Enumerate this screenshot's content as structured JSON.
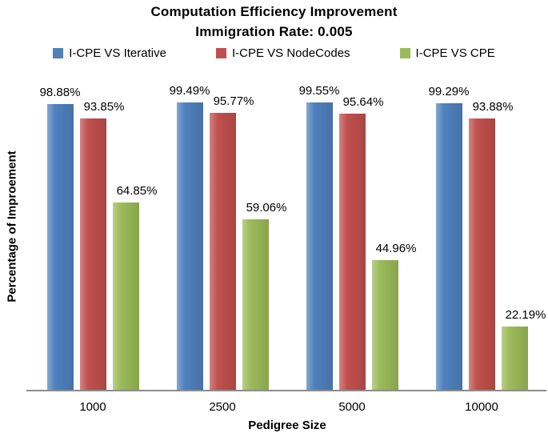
{
  "chart_data": {
    "type": "bar",
    "title": "Computation Efficiency Improvement",
    "subtitle": "Immigration Rate: 0.005",
    "categories": [
      "1000",
      "2500",
      "5000",
      "10000"
    ],
    "series": [
      {
        "name": "I-CPE VS Iterative",
        "color": "#4F81BD",
        "values": [
          98.88,
          99.49,
          99.55,
          99.29
        ],
        "labels": [
          "98.88%",
          "99.49%",
          "99.55%",
          "99.29%"
        ]
      },
      {
        "name": "I-CPE VS NodeCodes",
        "color": "#C0504D",
        "values": [
          93.85,
          95.77,
          95.64,
          93.88
        ],
        "labels": [
          "93.85%",
          "95.77%",
          "95.64%",
          "93.88%"
        ]
      },
      {
        "name": "I-CPE VS CPE",
        "color": "#9BBB59",
        "values": [
          64.85,
          59.06,
          44.96,
          22.19
        ],
        "labels": [
          "64.85%",
          "59.06%",
          "44.96%",
          "22.19%"
        ]
      }
    ],
    "xlabel": "Pedigree Size",
    "ylabel": "Percentage of Improement",
    "ylim": [
      0,
      100
    ],
    "grid": false,
    "legend_position": "top",
    "axis_line_color": "#8c8c8c"
  }
}
